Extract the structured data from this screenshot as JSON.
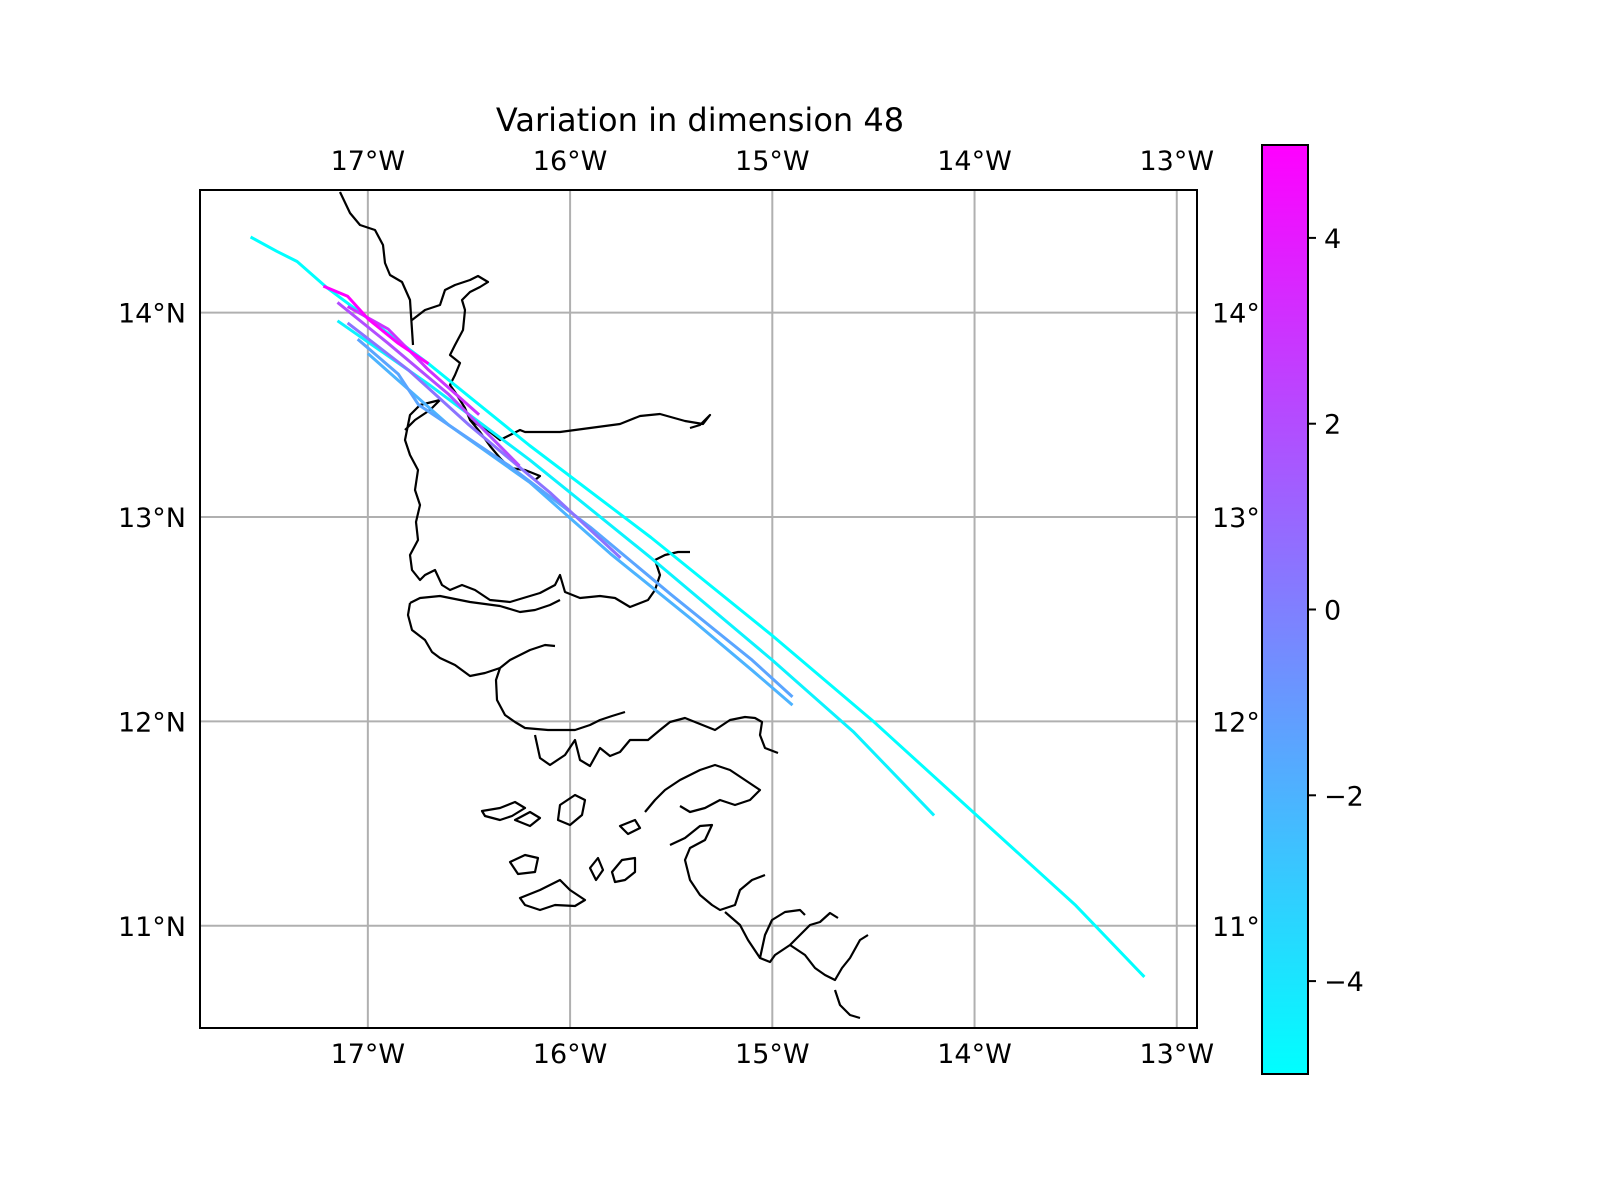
{
  "title": "Variation in dimension 48",
  "map": {
    "lon_ticks": [
      "17°W",
      "16°W",
      "15°W",
      "14°W",
      "13°W"
    ],
    "lat_ticks": [
      "14°N",
      "13°N",
      "12°N",
      "11°N"
    ],
    "lat_ticks_right": [
      "14°",
      "13°",
      "12°",
      "11°"
    ],
    "extent": {
      "lon": [
        -17.83,
        -12.9
      ],
      "lat": [
        10.5,
        14.6
      ]
    },
    "grid": true
  },
  "colorbar": {
    "ticks": [
      "4",
      "2",
      "0",
      "−2",
      "−4"
    ],
    "range": [
      -5,
      5
    ],
    "colormap": "cool",
    "low_color": "#00ffff",
    "high_color": "#ff00ff"
  },
  "chart_data": {
    "type": "line",
    "title": "Variation in dimension 48",
    "xlabel": "",
    "ylabel": "",
    "xlim": [
      -17.83,
      -12.9
    ],
    "ylim": [
      10.5,
      14.6
    ],
    "series": [
      {
        "value": -4.8,
        "color": "#00ffff",
        "points": [
          [
            -17.58,
            14.37
          ],
          [
            -17.45,
            14.3
          ],
          [
            -17.35,
            14.25
          ],
          [
            -17.2,
            14.12
          ],
          [
            -16.7,
            13.75
          ],
          [
            -16.2,
            13.35
          ],
          [
            -15.6,
            12.9
          ],
          [
            -15.0,
            12.42
          ],
          [
            -14.5,
            12.0
          ],
          [
            -14.0,
            11.55
          ],
          [
            -13.5,
            11.1
          ],
          [
            -13.16,
            10.75
          ]
        ]
      },
      {
        "value": -4.5,
        "color": "#0cf3ff",
        "points": [
          [
            -17.15,
            13.96
          ],
          [
            -16.7,
            13.65
          ],
          [
            -16.2,
            13.28
          ],
          [
            -15.6,
            12.8
          ],
          [
            -15.0,
            12.3
          ],
          [
            -14.6,
            11.95
          ],
          [
            -14.2,
            11.54
          ]
        ]
      },
      {
        "value": -1.5,
        "color": "#4cb3ff",
        "points": [
          [
            -17.0,
            13.8
          ],
          [
            -16.6,
            13.45
          ],
          [
            -16.2,
            13.17
          ],
          [
            -15.8,
            12.82
          ],
          [
            -15.4,
            12.5
          ],
          [
            -15.1,
            12.25
          ],
          [
            -14.9,
            12.08
          ]
        ]
      },
      {
        "value": -0.8,
        "color": "#5aa5ff",
        "points": [
          [
            -17.05,
            13.87
          ],
          [
            -16.85,
            13.7
          ],
          [
            -16.75,
            13.55
          ],
          [
            -16.6,
            13.45
          ],
          [
            -16.3,
            13.25
          ],
          [
            -15.9,
            12.95
          ],
          [
            -15.5,
            12.62
          ],
          [
            -15.1,
            12.3
          ],
          [
            -14.9,
            12.12
          ]
        ]
      },
      {
        "value": 0.5,
        "color": "#8c73ff",
        "points": [
          [
            -17.1,
            13.95
          ],
          [
            -16.8,
            13.72
          ],
          [
            -16.5,
            13.45
          ],
          [
            -16.1,
            13.12
          ],
          [
            -15.75,
            12.8
          ]
        ]
      },
      {
        "value": 2.0,
        "color": "#b34cff",
        "points": [
          [
            -17.15,
            14.05
          ],
          [
            -16.9,
            13.85
          ],
          [
            -16.6,
            13.6
          ],
          [
            -16.25,
            13.25
          ]
        ]
      },
      {
        "value": 3.0,
        "color": "#cc33ff",
        "points": [
          [
            -17.1,
            14.03
          ],
          [
            -16.9,
            13.92
          ],
          [
            -16.7,
            13.72
          ],
          [
            -16.45,
            13.5
          ]
        ]
      },
      {
        "value": 4.8,
        "color": "#ff00ff",
        "points": [
          [
            -17.22,
            14.13
          ],
          [
            -17.1,
            14.08
          ],
          [
            -17.0,
            13.97
          ],
          [
            -16.85,
            13.85
          ],
          [
            -16.7,
            13.75
          ]
        ]
      }
    ]
  }
}
